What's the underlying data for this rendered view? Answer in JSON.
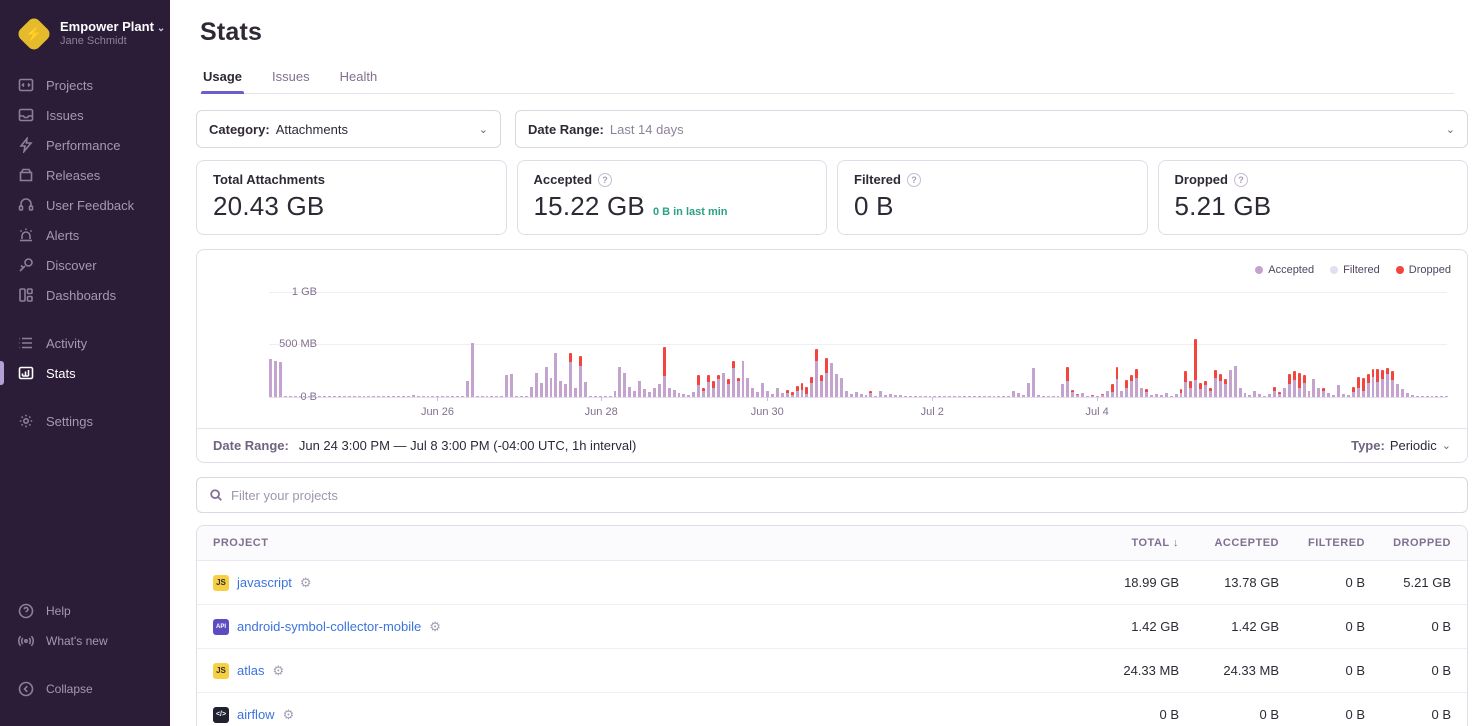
{
  "org": {
    "name": "Empower Plant",
    "user": "Jane Schmidt",
    "chevron": "⌄"
  },
  "sidebar": {
    "items": [
      {
        "label": "Projects",
        "icon": "projects-icon"
      },
      {
        "label": "Issues",
        "icon": "issues-icon"
      },
      {
        "label": "Performance",
        "icon": "performance-icon"
      },
      {
        "label": "Releases",
        "icon": "releases-icon"
      },
      {
        "label": "User Feedback",
        "icon": "user-feedback-icon"
      },
      {
        "label": "Alerts",
        "icon": "alerts-icon"
      },
      {
        "label": "Discover",
        "icon": "discover-icon"
      },
      {
        "label": "Dashboards",
        "icon": "dashboards-icon"
      }
    ],
    "secondary": [
      {
        "label": "Activity",
        "icon": "activity-icon"
      },
      {
        "label": "Stats",
        "icon": "stats-icon",
        "active": true
      },
      {
        "label": "Settings",
        "icon": "settings-icon"
      }
    ],
    "footer": [
      {
        "label": "Help",
        "icon": "help-icon"
      },
      {
        "label": "What's new",
        "icon": "whats-new-icon"
      },
      {
        "label": "Collapse",
        "icon": "collapse-icon"
      }
    ]
  },
  "header": {
    "title": "Stats",
    "tabs": [
      {
        "label": "Usage"
      },
      {
        "label": "Issues"
      },
      {
        "label": "Health"
      }
    ],
    "active_tab": "Usage"
  },
  "filters": {
    "category_label": "Category:",
    "category_value": "Attachments",
    "date_range_label": "Date Range:",
    "date_range_value": "Last 14 days"
  },
  "cards": [
    {
      "label": "Total Attachments",
      "value": "20.43 GB",
      "sub": "",
      "has_help": false
    },
    {
      "label": "Accepted",
      "value": "15.22 GB",
      "sub": "0 B in last min",
      "has_help": true
    },
    {
      "label": "Filtered",
      "value": "0 B",
      "sub": "",
      "has_help": true
    },
    {
      "label": "Dropped",
      "value": "5.21 GB",
      "sub": "",
      "has_help": true
    }
  ],
  "chart_data": {
    "type": "bar",
    "stacked": true,
    "unit": "MB",
    "title": "Attachments usage, hourly stacked bars (Accepted + Dropped)",
    "ylim": [
      0,
      1000
    ],
    "yticks": [
      {
        "label": "1 GB",
        "value": 1000
      },
      {
        "label": "500 MB",
        "value": 500
      },
      {
        "label": "0 B",
        "value": 0
      }
    ],
    "xticks": [
      {
        "label": "Jun 26",
        "pct": 14.3
      },
      {
        "label": "Jun 28",
        "pct": 28.2
      },
      {
        "label": "Jun 30",
        "pct": 42.3
      },
      {
        "label": "Jul 2",
        "pct": 56.3
      },
      {
        "label": "Jul 4",
        "pct": 70.3
      }
    ],
    "legend": [
      {
        "label": "Accepted",
        "color": "#c5a3cf"
      },
      {
        "label": "Filtered",
        "color": "#e4def0"
      },
      {
        "label": "Dropped",
        "color": "#f2453d"
      }
    ],
    "colors": {
      "accepted": "#c5a3cf",
      "filtered": "#e4def0",
      "dropped": "#f2453d"
    },
    "series_names": [
      "Accepted",
      "Dropped"
    ],
    "bars": [
      [
        360,
        0
      ],
      [
        345,
        0
      ],
      [
        330,
        0
      ],
      [
        4,
        0
      ],
      [
        6,
        0
      ],
      [
        5,
        0
      ],
      [
        3,
        0
      ],
      [
        7,
        0
      ],
      [
        4,
        0
      ],
      [
        5,
        0
      ],
      [
        6,
        0
      ],
      [
        3,
        0
      ],
      [
        5,
        0
      ],
      [
        8,
        0
      ],
      [
        4,
        0
      ],
      [
        6,
        0
      ],
      [
        5,
        0
      ],
      [
        4,
        0
      ],
      [
        7,
        0
      ],
      [
        3,
        0
      ],
      [
        5,
        0
      ],
      [
        6,
        0
      ],
      [
        4,
        0
      ],
      [
        5,
        0
      ],
      [
        7,
        0
      ],
      [
        4,
        0
      ],
      [
        6,
        0
      ],
      [
        5,
        0
      ],
      [
        4,
        0
      ],
      [
        22,
        0
      ],
      [
        5,
        0
      ],
      [
        4,
        0
      ],
      [
        6,
        0
      ],
      [
        3,
        0
      ],
      [
        5,
        0
      ],
      [
        7,
        0
      ],
      [
        4,
        0
      ],
      [
        6,
        0
      ],
      [
        5,
        0
      ],
      [
        4,
        0
      ],
      [
        150,
        0
      ],
      [
        510,
        0
      ],
      [
        6,
        0
      ],
      [
        5,
        0
      ],
      [
        8,
        0
      ],
      [
        4,
        0
      ],
      [
        6,
        0
      ],
      [
        5,
        0
      ],
      [
        205,
        0
      ],
      [
        215,
        0
      ],
      [
        6,
        0
      ],
      [
        4,
        0
      ],
      [
        7,
        0
      ],
      [
        95,
        0
      ],
      [
        230,
        0
      ],
      [
        130,
        0
      ],
      [
        285,
        0
      ],
      [
        180,
        0
      ],
      [
        420,
        0
      ],
      [
        155,
        0
      ],
      [
        120,
        0
      ],
      [
        330,
        90
      ],
      [
        90,
        0
      ],
      [
        300,
        95
      ],
      [
        140,
        0
      ],
      [
        8,
        0
      ],
      [
        5,
        0
      ],
      [
        6,
        0
      ],
      [
        4,
        0
      ],
      [
        7,
        0
      ],
      [
        60,
        0
      ],
      [
        285,
        0
      ],
      [
        230,
        0
      ],
      [
        95,
        0
      ],
      [
        60,
        0
      ],
      [
        150,
        0
      ],
      [
        75,
        0
      ],
      [
        45,
        0
      ],
      [
        90,
        0
      ],
      [
        120,
        0
      ],
      [
        200,
        280
      ],
      [
        90,
        0
      ],
      [
        70,
        0
      ],
      [
        40,
        0
      ],
      [
        25,
        0
      ],
      [
        15,
        0
      ],
      [
        45,
        0
      ],
      [
        110,
        95
      ],
      [
        60,
        30
      ],
      [
        140,
        70
      ],
      [
        90,
        60
      ],
      [
        170,
        40
      ],
      [
        230,
        0
      ],
      [
        120,
        50
      ],
      [
        280,
        60
      ],
      [
        150,
        30
      ],
      [
        340,
        0
      ],
      [
        180,
        0
      ],
      [
        90,
        0
      ],
      [
        45,
        0
      ],
      [
        130,
        0
      ],
      [
        60,
        0
      ],
      [
        25,
        0
      ],
      [
        90,
        0
      ],
      [
        40,
        0
      ],
      [
        35,
        30
      ],
      [
        20,
        25
      ],
      [
        60,
        45
      ],
      [
        70,
        60
      ],
      [
        25,
        70
      ],
      [
        130,
        60
      ],
      [
        340,
        120
      ],
      [
        150,
        60
      ],
      [
        230,
        140
      ],
      [
        320,
        0
      ],
      [
        220,
        0
      ],
      [
        180,
        0
      ],
      [
        60,
        0
      ],
      [
        30,
        0
      ],
      [
        45,
        0
      ],
      [
        25,
        0
      ],
      [
        15,
        0
      ],
      [
        35,
        20
      ],
      [
        10,
        0
      ],
      [
        55,
        0
      ],
      [
        20,
        0
      ],
      [
        30,
        0
      ],
      [
        15,
        0
      ],
      [
        20,
        0
      ],
      [
        5,
        0
      ],
      [
        4,
        0
      ],
      [
        6,
        0
      ],
      [
        3,
        0
      ],
      [
        7,
        0
      ],
      [
        5,
        0
      ],
      [
        4,
        0
      ],
      [
        6,
        0
      ],
      [
        5,
        0
      ],
      [
        3,
        0
      ],
      [
        6,
        0
      ],
      [
        4,
        0
      ],
      [
        7,
        0
      ],
      [
        5,
        0
      ],
      [
        4,
        0
      ],
      [
        6,
        0
      ],
      [
        3,
        0
      ],
      [
        5,
        0
      ],
      [
        7,
        0
      ],
      [
        4,
        0
      ],
      [
        5,
        0
      ],
      [
        6,
        0
      ],
      [
        60,
        0
      ],
      [
        35,
        0
      ],
      [
        15,
        0
      ],
      [
        130,
        0
      ],
      [
        280,
        0
      ],
      [
        20,
        0
      ],
      [
        5,
        0
      ],
      [
        4,
        0
      ],
      [
        6,
        0
      ],
      [
        5,
        0
      ],
      [
        120,
        0
      ],
      [
        150,
        140
      ],
      [
        45,
        25
      ],
      [
        20,
        10
      ],
      [
        35,
        0
      ],
      [
        10,
        0
      ],
      [
        6,
        5
      ],
      [
        4,
        0
      ],
      [
        15,
        10
      ],
      [
        60,
        0
      ],
      [
        45,
        80
      ],
      [
        170,
        120
      ],
      [
        60,
        0
      ],
      [
        90,
        70
      ],
      [
        150,
        60
      ],
      [
        180,
        90
      ],
      [
        90,
        0
      ],
      [
        45,
        30
      ],
      [
        20,
        0
      ],
      [
        30,
        0
      ],
      [
        15,
        0
      ],
      [
        40,
        0
      ],
      [
        10,
        0
      ],
      [
        25,
        0
      ],
      [
        40,
        40
      ],
      [
        140,
        110
      ],
      [
        90,
        60
      ],
      [
        160,
        390
      ],
      [
        80,
        50
      ],
      [
        110,
        40
      ],
      [
        60,
        30
      ],
      [
        180,
        80
      ],
      [
        150,
        70
      ],
      [
        120,
        50
      ],
      [
        260,
        0
      ],
      [
        300,
        0
      ],
      [
        90,
        0
      ],
      [
        40,
        0
      ],
      [
        20,
        0
      ],
      [
        60,
        0
      ],
      [
        25,
        0
      ],
      [
        10,
        0
      ],
      [
        30,
        0
      ],
      [
        60,
        40
      ],
      [
        30,
        20
      ],
      [
        90,
        0
      ],
      [
        120,
        100
      ],
      [
        160,
        90
      ],
      [
        90,
        140
      ],
      [
        130,
        80
      ],
      [
        60,
        0
      ],
      [
        170,
        0
      ],
      [
        90,
        0
      ],
      [
        60,
        30
      ],
      [
        40,
        0
      ],
      [
        20,
        0
      ],
      [
        110,
        0
      ],
      [
        30,
        0
      ],
      [
        15,
        0
      ],
      [
        45,
        50
      ],
      [
        90,
        100
      ],
      [
        60,
        120
      ],
      [
        130,
        90
      ],
      [
        190,
        80
      ],
      [
        140,
        130
      ],
      [
        170,
        90
      ],
      [
        220,
        60
      ],
      [
        160,
        90
      ],
      [
        120,
        0
      ],
      [
        80,
        0
      ],
      [
        40,
        0
      ],
      [
        20,
        0
      ],
      [
        10,
        0
      ],
      [
        6,
        0
      ],
      [
        8,
        0
      ],
      [
        5,
        0
      ],
      [
        7,
        0
      ],
      [
        4,
        0
      ],
      [
        6,
        0
      ]
    ]
  },
  "chart_footer": {
    "label": "Date Range:",
    "value": "Jun 24 3:00 PM — Jul 8 3:00 PM (-04:00 UTC, 1h interval)",
    "type_label": "Type:",
    "type_value": "Periodic",
    "chevron": "⌄"
  },
  "project_filter": {
    "placeholder": "Filter your projects"
  },
  "table": {
    "columns": {
      "project": "PROJECT",
      "total": "TOTAL",
      "accepted": "ACCEPTED",
      "filtered": "FILTERED",
      "dropped": "DROPPED"
    },
    "sort_icon": "↓",
    "rows": [
      {
        "name": "javascript",
        "platform_label": "JS",
        "platform_style": "background:#f7d041;color:#2f2936;",
        "total": "18.99 GB",
        "accepted": "13.78 GB",
        "filtered": "0 B",
        "dropped": "5.21 GB"
      },
      {
        "name": "android-symbol-collector-mobile",
        "platform_label": "API",
        "platform_style": "background:#5b4cc0;color:#fff;font-size:6px;",
        "total": "1.42 GB",
        "accepted": "1.42 GB",
        "filtered": "0 B",
        "dropped": "0 B"
      },
      {
        "name": "atlas",
        "platform_label": "JS",
        "platform_style": "background:#f7d041;color:#2f2936;",
        "total": "24.33 MB",
        "accepted": "24.33 MB",
        "filtered": "0 B",
        "dropped": "0 B"
      },
      {
        "name": "airflow",
        "platform_label": "</>",
        "platform_style": "background:#1f2030;color:#fff;font-size:7px;",
        "total": "0 B",
        "accepted": "0 B",
        "filtered": "0 B",
        "dropped": "0 B"
      }
    ]
  },
  "colors": {
    "sidebar_bg": "#2b1d38",
    "accent": "#6c5fc7",
    "link_blue": "#3c74dd",
    "teal": "#2ba185",
    "accepted_bar": "#c5a3cf",
    "dropped_bar": "#f2453d"
  }
}
